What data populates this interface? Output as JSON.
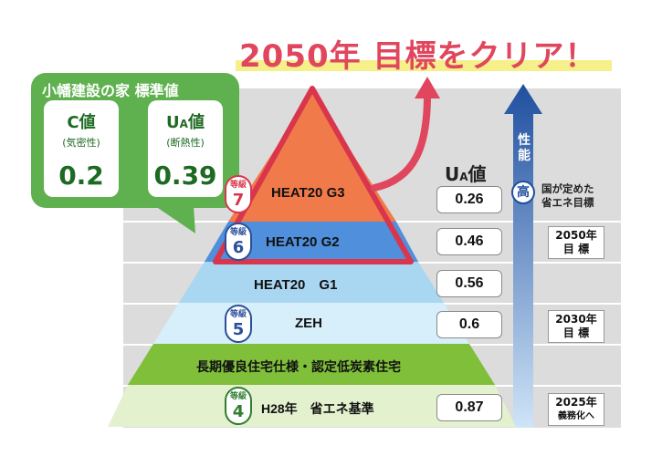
{
  "headline": "2050年 目標をクリア！",
  "standard_card": {
    "title": "小幡建設の家 標準値",
    "c_value": {
      "label": "C値",
      "sub": "(気密性)",
      "value": "0.2"
    },
    "ua_value": {
      "label_main": "U",
      "label_sub": "A",
      "label_suffix": "値",
      "sub": "(断熱性)",
      "value": "0.39"
    }
  },
  "ua_column_header": {
    "main": "U",
    "sub": "A",
    "suffix": "値"
  },
  "tiers": [
    {
      "label": "HEAT20 G3",
      "grade_label": "等級",
      "grade": "7",
      "ua": "0.26",
      "color": "#f07a4a"
    },
    {
      "label": "HEAT20 G2",
      "grade_label": "等級",
      "grade": "6",
      "ua": "0.46",
      "color": "#4f8fdc"
    },
    {
      "label": "HEAT20　G1",
      "ua": "0.56",
      "color": "#a9d6f0"
    },
    {
      "label": "ZEH",
      "grade_label": "等級",
      "grade": "5",
      "ua": "0.6",
      "color": "#d7eefb"
    },
    {
      "label": "長期優良住宅仕様・認定低炭素住宅",
      "color": "#7fbf3a"
    },
    {
      "label": "H28年　省エネ基準",
      "grade_label": "等級",
      "grade": "4",
      "ua": "0.87",
      "color": "#e3f1cf"
    }
  ],
  "performance": {
    "label": "性能",
    "high": "高",
    "national_goal": [
      "国が定めた",
      "省エネ目標"
    ]
  },
  "targets": [
    {
      "line1": "2050年",
      "line2": "目 標"
    },
    {
      "line1": "2030年",
      "line2": "目 標"
    },
    {
      "line1": "2025年",
      "line2": "義務化へ"
    }
  ],
  "colors": {
    "accent_red": "#d9354c",
    "headline": "#e0465d",
    "green": "#5fb14f",
    "blue_arrow": "#1f4fa0",
    "grade_red": "#d9354c",
    "grade_blue": "#2a4f9a",
    "grade_green": "#2f7d2f"
  }
}
